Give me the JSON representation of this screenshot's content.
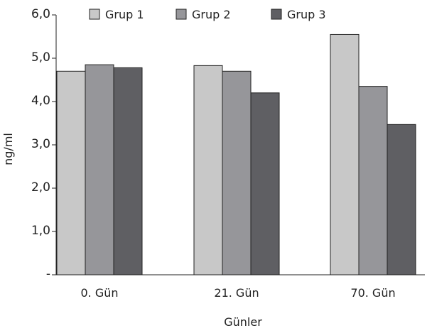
{
  "chart_data": {
    "type": "bar",
    "categories": [
      "0. Gün",
      "21. Gün",
      "70. Gün"
    ],
    "series": [
      {
        "name": "Grup 1",
        "values": [
          4.7,
          4.83,
          5.55
        ],
        "color": "#c8c8c8"
      },
      {
        "name": "Grup 2",
        "values": [
          4.85,
          4.7,
          4.35
        ],
        "color": "#96969a"
      },
      {
        "name": "Grup 3",
        "values": [
          4.78,
          4.2,
          3.47
        ],
        "color": "#5f5f63"
      }
    ],
    "ylim": [
      0,
      6
    ],
    "yticks": [
      0,
      1,
      2,
      3,
      4,
      5,
      6
    ],
    "ytick_labels": [
      "-",
      "1,0",
      "2,0",
      "3,0",
      "4,0",
      "5,0",
      "6,0"
    ],
    "xlabel": "Günler",
    "ylabel": "ng/ml",
    "legend": "top"
  }
}
